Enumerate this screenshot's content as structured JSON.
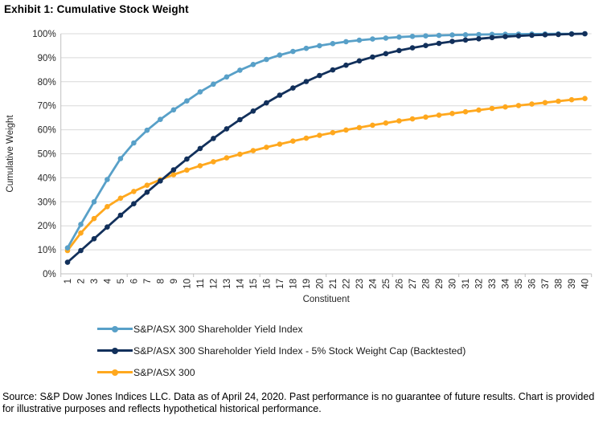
{
  "title": "Exhibit 1: Cumulative Stock Weight",
  "footer": "Source: S&P Dow Jones Indices LLC. Data as of April 24, 2020. Past performance is no guarantee of future results. Chart is provided for illustrative purposes and reflects hypothetical historical performance.",
  "colors": {
    "gridline": "#D9D9D9",
    "axis": "#BFBFBF",
    "tick_text": "#262626",
    "light_blue": "#58A0C8",
    "navy": "#12305B",
    "orange": "#FFA81E"
  },
  "chart_data": {
    "type": "line",
    "title": "Exhibit 1: Cumulative Stock Weight",
    "xlabel": "Constituent",
    "ylabel": "Cumulative Weight",
    "x": [
      1,
      2,
      3,
      4,
      5,
      6,
      7,
      8,
      9,
      10,
      11,
      12,
      13,
      14,
      15,
      16,
      17,
      18,
      19,
      20,
      21,
      22,
      23,
      24,
      25,
      26,
      27,
      28,
      29,
      30,
      31,
      32,
      33,
      34,
      35,
      36,
      37,
      38,
      39,
      40
    ],
    "y_ticks_percent": [
      0,
      10,
      20,
      30,
      40,
      50,
      60,
      70,
      80,
      90,
      100
    ],
    "ylim": [
      0,
      100
    ],
    "grid": "horizontal",
    "marker": "circle",
    "legend_position": "bottom-left",
    "series": [
      {
        "name": "S&P/ASX 300 Shareholder Yield Index",
        "color": "#58A0C8",
        "values": [
          10.8,
          20.6,
          30.0,
          39.3,
          48.0,
          54.5,
          59.8,
          64.3,
          68.3,
          72.0,
          75.8,
          79.0,
          82.0,
          84.8,
          87.2,
          89.3,
          91.1,
          92.6,
          93.9,
          95.0,
          95.9,
          96.7,
          97.3,
          97.8,
          98.2,
          98.6,
          98.9,
          99.1,
          99.3,
          99.45,
          99.55,
          99.65,
          99.72,
          99.78,
          99.83,
          99.87,
          99.91,
          99.94,
          99.97,
          100.0
        ]
      },
      {
        "name": "S&P/ASX 300 Shareholder Yield Index - 5% Stock Weight Cap (Backtested)",
        "color": "#12305B",
        "values": [
          4.8,
          9.7,
          14.6,
          19.5,
          24.4,
          29.2,
          34.0,
          38.7,
          43.3,
          47.8,
          52.2,
          56.4,
          60.4,
          64.2,
          67.8,
          71.2,
          74.4,
          77.4,
          80.1,
          82.6,
          84.9,
          86.9,
          88.7,
          90.3,
          91.7,
          93.0,
          94.1,
          95.1,
          96.0,
          96.8,
          97.4,
          97.9,
          98.4,
          98.8,
          99.1,
          99.35,
          99.55,
          99.7,
          99.85,
          100.0
        ]
      },
      {
        "name": "S&P/ASX 300",
        "color": "#FFA81E",
        "values": [
          9.7,
          17.0,
          23.0,
          28.0,
          31.5,
          34.3,
          36.9,
          39.2,
          41.3,
          43.2,
          45.0,
          46.7,
          48.3,
          49.8,
          51.3,
          52.7,
          54.0,
          55.3,
          56.5,
          57.7,
          58.8,
          59.9,
          60.9,
          61.9,
          62.8,
          63.7,
          64.5,
          65.3,
          66.1,
          66.8,
          67.5,
          68.2,
          68.9,
          69.5,
          70.1,
          70.7,
          71.3,
          71.9,
          72.5,
          73.0
        ]
      }
    ]
  }
}
